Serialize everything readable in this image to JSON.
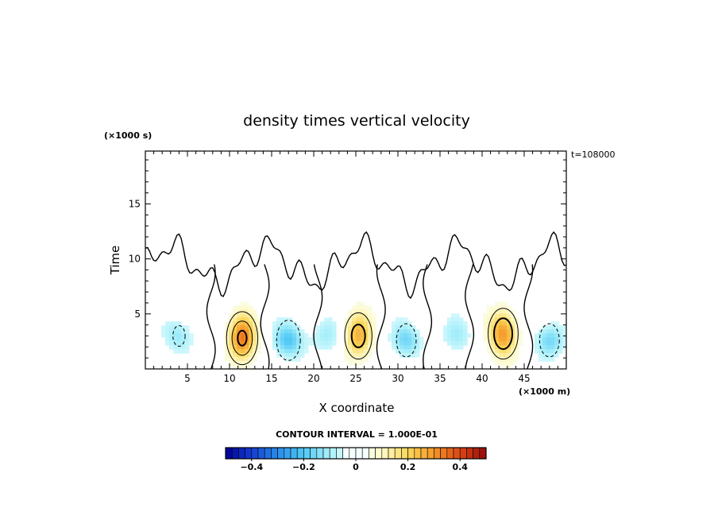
{
  "chart_data": {
    "type": "heatmap",
    "title": "density times vertical velocity",
    "xlabel": "X coordinate",
    "ylabel": "Time",
    "x_unit": "(×1000 m)",
    "y_unit": "(×1000 s)",
    "time_stamp": "t=108000",
    "xlim": [
      0,
      50
    ],
    "ylim": [
      0,
      19.8
    ],
    "x_ticks": [
      5,
      10,
      15,
      20,
      25,
      30,
      35,
      40,
      45
    ],
    "y_ticks": [
      5,
      10,
      15
    ],
    "contour_interval_text": "CONTOUR INTERVAL = 1.000E-01",
    "colorbar": {
      "range": [
        -0.5,
        0.5
      ],
      "ticks": [
        -0.4,
        -0.2,
        0,
        0.2,
        0.4
      ],
      "tick_labels": [
        "−0.4",
        "−0.2",
        "0",
        "0.2",
        "0.4"
      ]
    },
    "features": [
      {
        "kind": "max",
        "x": 11.5,
        "t": 2.8,
        "value": 0.33
      },
      {
        "kind": "max",
        "x": 25.3,
        "t": 3.0,
        "value": 0.25
      },
      {
        "kind": "max",
        "x": 42.5,
        "t": 3.2,
        "value": 0.3
      },
      {
        "kind": "min",
        "x": 17.0,
        "t": 2.6,
        "value": -0.2
      },
      {
        "kind": "min",
        "x": 31.0,
        "t": 2.6,
        "value": -0.16
      },
      {
        "kind": "min",
        "x": 48.0,
        "t": 2.6,
        "value": -0.16
      },
      {
        "kind": "min",
        "x": 4.0,
        "t": 3.0,
        "value": -0.12
      },
      {
        "kind": "min",
        "x": 21.5,
        "t": 3.0,
        "value": -0.1
      },
      {
        "kind": "min",
        "x": 37.0,
        "t": 3.0,
        "value": -0.1
      }
    ]
  }
}
